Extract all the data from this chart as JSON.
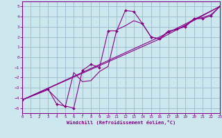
{
  "xlabel": "Windchill (Refroidissement éolien,°C)",
  "bg_color": "#cce8ee",
  "grid_color": "#99bbcc",
  "line_color": "#880088",
  "xlim": [
    0,
    23
  ],
  "ylim": [
    -5.5,
    5.5
  ],
  "xticks": [
    0,
    1,
    2,
    3,
    4,
    5,
    6,
    7,
    8,
    9,
    10,
    11,
    12,
    13,
    14,
    15,
    16,
    17,
    18,
    19,
    20,
    21,
    22,
    23
  ],
  "yticks": [
    -5,
    -4,
    -3,
    -2,
    -1,
    0,
    1,
    2,
    3,
    4,
    5
  ],
  "line1_x": [
    0,
    3,
    4,
    5,
    6,
    7,
    8,
    9,
    10,
    11,
    12,
    13,
    14,
    15,
    16,
    17,
    18,
    19,
    20,
    21,
    22,
    23
  ],
  "line1_y": [
    -4.2,
    -3.1,
    -4.6,
    -4.8,
    -5.0,
    -1.3,
    -0.7,
    -1.0,
    2.6,
    2.6,
    4.6,
    4.5,
    3.3,
    2.0,
    1.8,
    2.5,
    2.8,
    3.0,
    3.8,
    3.8,
    4.1,
    5.0
  ],
  "line2_x": [
    0,
    3,
    5,
    6,
    7,
    8,
    9,
    10,
    11,
    12,
    13,
    14,
    15,
    16,
    17,
    18,
    19,
    20,
    21,
    22,
    23
  ],
  "line2_y": [
    -4.2,
    -3.2,
    -4.9,
    -1.5,
    -2.4,
    -2.3,
    -1.4,
    -0.9,
    2.7,
    3.1,
    3.6,
    3.3,
    2.0,
    1.8,
    2.6,
    2.7,
    3.1,
    3.8,
    3.9,
    4.2,
    5.0
  ],
  "line3_x": [
    0,
    16,
    23
  ],
  "line3_y": [
    -4.2,
    2.0,
    5.0
  ],
  "line4_x": [
    0,
    16,
    23
  ],
  "line4_y": [
    -4.2,
    1.8,
    5.0
  ]
}
